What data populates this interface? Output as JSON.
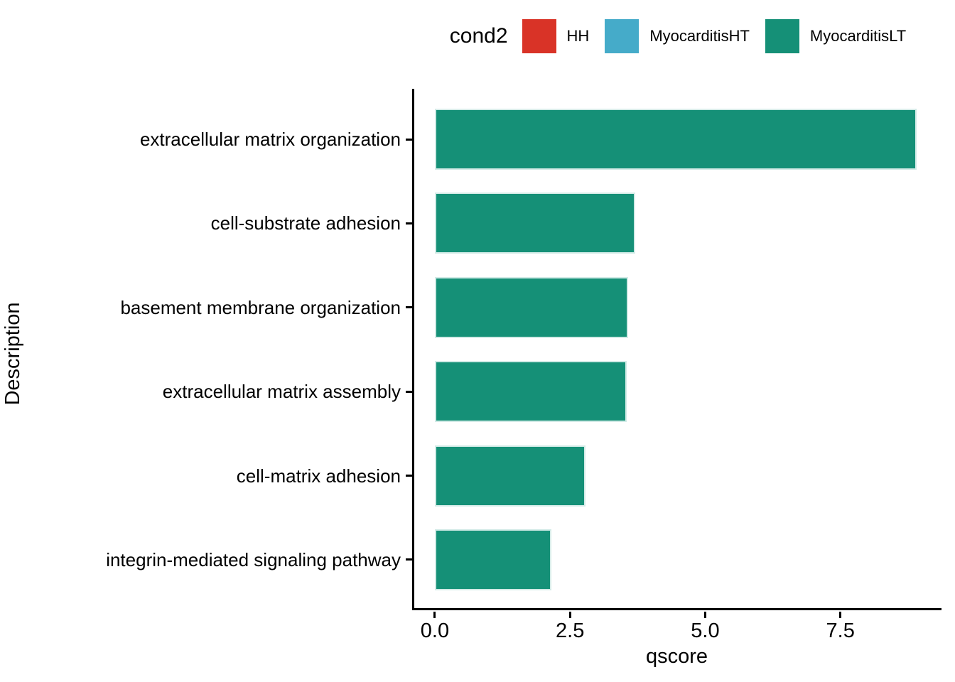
{
  "legend": {
    "title": "cond2",
    "position": "top",
    "items": [
      {
        "label": "HH",
        "color": "#d93327"
      },
      {
        "label": "MyocarditisHT",
        "color": "#45abc9"
      },
      {
        "label": "MyocarditisLT",
        "color": "#159077"
      }
    ]
  },
  "chart_data": {
    "type": "bar",
    "orientation": "horizontal",
    "title": "",
    "xlabel": "qscore",
    "ylabel": "Description",
    "categories": [
      "extracellular matrix organization",
      "cell-substrate adhesion",
      "basement membrane organization",
      "extracellular matrix assembly",
      "cell-matrix adhesion",
      "integrin-mediated signaling pathway"
    ],
    "series": [
      {
        "name": "MyocarditisLT",
        "values": [
          8.91,
          3.7,
          3.57,
          3.55,
          2.79,
          2.15
        ]
      }
    ],
    "bar_color": "#159077",
    "xlim": [
      -0.42,
      9.37
    ],
    "xticks": {
      "values": [
        0,
        2.5,
        5,
        7.5
      ],
      "labels": [
        "0.0",
        "2.5",
        "5.0",
        "7.5"
      ]
    },
    "grid": "off",
    "legend_position": "top",
    "axis_color": "#000000"
  }
}
